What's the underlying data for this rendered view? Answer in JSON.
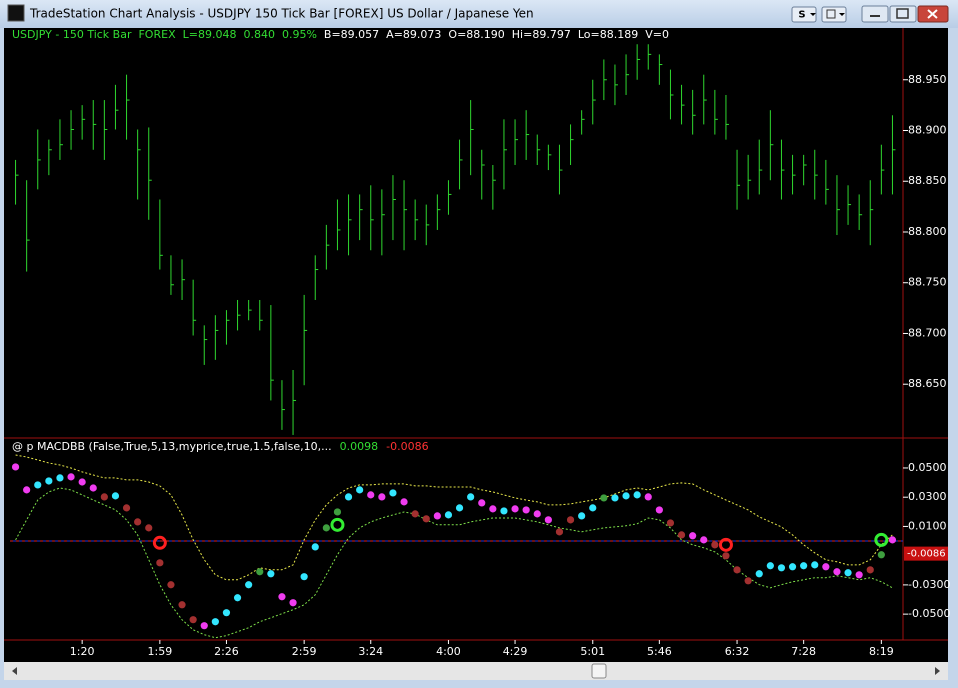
{
  "window": {
    "title": "TradeStation Chart Analysis - USDJPY 150 Tick Bar [FOREX] US Dollar / Japanese Yen",
    "style_button": "S"
  },
  "chart_data": [
    {
      "type": "hlc",
      "header": [
        "USDJPY - 150 Tick Bar",
        "FOREX",
        "L=89.048",
        "0.840",
        "0.95%"
      ],
      "header_color": "#33dd33",
      "quote": [
        "B=89.057",
        "A=89.073",
        "O=88.190",
        "Hi=89.797",
        "Lo=88.189",
        "V=0"
      ],
      "quote_color": "#ffffff",
      "color": "#2fd82f",
      "high": [
        88.871,
        88.851,
        88.901,
        88.891,
        88.911,
        88.92,
        88.925,
        88.93,
        88.93,
        88.945,
        88.955,
        88.901,
        88.903,
        88.832,
        88.777,
        88.773,
        88.753,
        88.708,
        88.718,
        88.723,
        88.733,
        88.733,
        88.733,
        88.728,
        88.654,
        88.664,
        88.738,
        88.777,
        88.807,
        88.832,
        88.837,
        88.837,
        88.846,
        88.842,
        88.856,
        88.851,
        88.832,
        88.827,
        88.837,
        88.851,
        88.891,
        88.93,
        88.881,
        88.866,
        88.911,
        88.911,
        88.92,
        88.896,
        88.886,
        88.886,
        88.906,
        88.92,
        88.95,
        88.97,
        88.965,
        88.975,
        88.985,
        88.985,
        88.975,
        88.96,
        88.945,
        88.94,
        88.955,
        88.94,
        88.935,
        88.881,
        88.876,
        88.891,
        88.92,
        88.891,
        88.876,
        88.876,
        88.881,
        88.871,
        88.856,
        88.846,
        88.837,
        88.851,
        88.886,
        88.915
      ],
      "low": [
        88.827,
        88.761,
        88.842,
        88.856,
        88.871,
        88.881,
        88.891,
        88.881,
        88.871,
        88.901,
        88.891,
        88.832,
        88.812,
        88.763,
        88.738,
        88.733,
        88.698,
        88.669,
        88.674,
        88.689,
        88.703,
        88.713,
        88.703,
        88.634,
        88.605,
        88.6,
        88.649,
        88.733,
        88.763,
        88.782,
        88.777,
        88.792,
        88.782,
        88.777,
        88.792,
        88.782,
        88.792,
        88.787,
        88.802,
        88.817,
        88.842,
        88.856,
        88.832,
        88.822,
        88.842,
        88.866,
        88.871,
        88.866,
        88.861,
        88.837,
        88.866,
        88.896,
        88.906,
        88.93,
        88.925,
        88.935,
        88.95,
        88.96,
        88.945,
        88.911,
        88.906,
        88.896,
        88.906,
        88.896,
        88.891,
        88.822,
        88.832,
        88.837,
        88.851,
        88.832,
        88.837,
        88.846,
        88.832,
        88.827,
        88.797,
        88.807,
        88.802,
        88.787,
        88.837,
        88.837
      ],
      "close": [
        88.856,
        88.792,
        88.871,
        88.881,
        88.886,
        88.901,
        88.911,
        88.906,
        88.901,
        88.92,
        88.93,
        88.881,
        88.851,
        88.777,
        88.748,
        88.753,
        88.713,
        88.694,
        88.703,
        88.713,
        88.718,
        88.723,
        88.713,
        88.654,
        88.625,
        88.634,
        88.703,
        88.763,
        88.787,
        88.802,
        88.812,
        88.822,
        88.812,
        88.817,
        88.832,
        88.822,
        88.812,
        88.807,
        88.822,
        88.837,
        88.871,
        88.901,
        88.866,
        88.851,
        88.881,
        88.891,
        88.896,
        88.881,
        88.876,
        88.861,
        88.891,
        88.911,
        88.93,
        88.95,
        88.945,
        88.955,
        88.97,
        88.975,
        88.965,
        88.935,
        88.925,
        88.915,
        88.93,
        88.911,
        88.906,
        88.846,
        88.851,
        88.861,
        88.886,
        88.861,
        88.856,
        88.866,
        88.856,
        88.842,
        88.822,
        88.827,
        88.817,
        88.822,
        88.861,
        88.881
      ],
      "ylim": [
        88.597,
        89.001
      ],
      "yticks": [
        {
          "value": 88.95,
          "label": "88.950"
        },
        {
          "value": 88.9,
          "label": "88.900"
        },
        {
          "value": 88.85,
          "label": "88.850"
        },
        {
          "value": 88.8,
          "label": "88.800"
        },
        {
          "value": 88.75,
          "label": "88.750"
        },
        {
          "value": 88.7,
          "label": "88.700"
        },
        {
          "value": 88.65,
          "label": "88.650"
        }
      ]
    },
    {
      "type": "dots",
      "title": "@ p MACDBB (False,True,5,13,myprice,true,1.5,false,10,...",
      "header_values": [
        0.0098,
        -0.0086
      ],
      "header_colors": [
        "#33dd33",
        "#ff3333"
      ],
      "categories": [
        null,
        null,
        null,
        null,
        null,
        null,
        "1:20",
        null,
        null,
        null,
        null,
        null,
        null,
        "1:59",
        null,
        null,
        null,
        null,
        null,
        "2:26",
        null,
        null,
        null,
        null,
        null,
        null,
        "2:59",
        null,
        null,
        null,
        null,
        null,
        "3:24",
        null,
        null,
        null,
        null,
        null,
        null,
        "4:00",
        null,
        null,
        null,
        null,
        null,
        "4:29",
        null,
        null,
        null,
        null,
        null,
        null,
        "5:01",
        null,
        null,
        null,
        null,
        null,
        "5:46",
        null,
        null,
        null,
        null,
        null,
        null,
        "6:32",
        null,
        null,
        null,
        null,
        null,
        "7:28",
        null,
        null,
        null,
        null,
        null,
        null,
        "8:19",
        null
      ],
      "values": [
        0.0507,
        0.035,
        0.0384,
        0.0411,
        0.0432,
        0.0439,
        0.0404,
        0.0363,
        0.0302,
        0.0309,
        0.0227,
        0.0131,
        0.009,
        -0.0149,
        -0.0299,
        -0.0436,
        -0.0538,
        -0.0579,
        -0.0552,
        -0.049,
        -0.0388,
        -0.0299,
        -0.021,
        -0.0224,
        -0.0381,
        -0.0422,
        -0.0244,
        -0.004,
        0.009,
        0.0199,
        0.0302,
        0.035,
        0.0316,
        0.0302,
        0.0329,
        0.0268,
        0.0186,
        0.0152,
        0.0172,
        0.0179,
        0.0227,
        0.0302,
        0.0261,
        0.022,
        0.0206,
        0.022,
        0.0213,
        0.0186,
        0.0145,
        0.0063,
        0.0145,
        0.0172,
        0.0227,
        0.0295,
        0.0295,
        0.0309,
        0.0316,
        0.0302,
        0.0213,
        0.0124,
        0.0042,
        0.0036,
        0.0008,
        -0.0026,
        -0.0101,
        -0.0197,
        -0.0272,
        -0.0224,
        -0.0169,
        -0.0183,
        -0.0176,
        -0.0169,
        -0.0163,
        -0.0176,
        -0.021,
        -0.0217,
        -0.0231,
        -0.0197,
        -0.0094,
        0.0008
      ],
      "colors": [
        "#f03cf0",
        "#f03cf0",
        "#33e6ff",
        "#33e6ff",
        "#33e6ff",
        "#f03cf0",
        "#f03cf0",
        "#f03cf0",
        "#a33030",
        "#33e6ff",
        "#a33030",
        "#a33030",
        "#a33030",
        "#a33030",
        "#a33030",
        "#a33030",
        "#a33030",
        "#f03cf0",
        "#33e6ff",
        "#33e6ff",
        "#33e6ff",
        "#33e6ff",
        "#3f9f3f",
        "#33e6ff",
        "#f03cf0",
        "#f03cf0",
        "#33e6ff",
        "#33e6ff",
        "#3f9f3f",
        "#3f9f3f",
        "#33e6ff",
        "#33e6ff",
        "#f03cf0",
        "#f03cf0",
        "#33e6ff",
        "#f03cf0",
        "#a33030",
        "#a33030",
        "#f03cf0",
        "#33e6ff",
        "#33e6ff",
        "#33e6ff",
        "#f03cf0",
        "#f03cf0",
        "#33e6ff",
        "#f03cf0",
        "#f03cf0",
        "#f03cf0",
        "#f03cf0",
        "#a33030",
        "#a33030",
        "#33e6ff",
        "#33e6ff",
        "#3f9f3f",
        "#33e6ff",
        "#33e6ff",
        "#33e6ff",
        "#f03cf0",
        "#f03cf0",
        "#a33030",
        "#a33030",
        "#f03cf0",
        "#f03cf0",
        "#a33030",
        "#a33030",
        "#a33030",
        "#a33030",
        "#33e6ff",
        "#33e6ff",
        "#33e6ff",
        "#33e6ff",
        "#33e6ff",
        "#33e6ff",
        "#f03cf0",
        "#f03cf0",
        "#33e6ff",
        "#f03cf0",
        "#a33030",
        "#3f9f3f",
        "#f03cf0"
      ],
      "series": [
        {
          "color": "#e8e84a",
          "values": [
            0.0589,
            0.0575,
            0.0555,
            0.0534,
            0.052,
            0.05,
            0.0473,
            0.0452,
            0.0432,
            0.0432,
            0.0418,
            0.0418,
            0.0404,
            0.0377,
            0.0316,
            0.0179,
            0.0008,
            -0.0128,
            -0.0231,
            -0.0265,
            -0.0265,
            -0.0231,
            -0.0183,
            -0.0197,
            -0.0197,
            -0.0163,
            0.0008,
            0.0145,
            0.0247,
            0.0316,
            0.0363,
            0.0384,
            0.0384,
            0.0391,
            0.0391,
            0.0391,
            0.0377,
            0.0377,
            0.037,
            0.037,
            0.037,
            0.037,
            0.035,
            0.0336,
            0.0316,
            0.0295,
            0.0281,
            0.0268,
            0.0247,
            0.0247,
            0.0254,
            0.0268,
            0.0281,
            0.0295,
            0.0322,
            0.035,
            0.0363,
            0.035,
            0.037,
            0.0391,
            0.0398,
            0.0391,
            0.035,
            0.0316,
            0.0281,
            0.0247,
            0.0213,
            0.0165,
            0.0131,
            0.0097,
            0.0042,
            -0.0026,
            -0.0081,
            -0.0128,
            -0.0142,
            -0.0163,
            -0.0163,
            -0.0128,
            -0.0026,
            0.0042
          ]
        },
        {
          "color": "#7ee04a",
          "values": [
            0.0008,
            0.0145,
            0.0281,
            0.0336,
            0.0363,
            0.035,
            0.0316,
            0.0281,
            0.0247,
            0.0213,
            0.0145,
            0.0042,
            -0.0128,
            -0.0299,
            -0.0436,
            -0.0538,
            -0.0607,
            -0.0641,
            -0.0661,
            -0.0647,
            -0.062,
            -0.0593,
            -0.0552,
            -0.0525,
            -0.0497,
            -0.047,
            -0.0436,
            -0.0367,
            -0.0231,
            -0.0094,
            0.0022,
            0.009,
            0.0131,
            0.0158,
            0.0179,
            0.0199,
            0.0186,
            0.0145,
            0.0111,
            0.0111,
            0.0111,
            0.0131,
            0.0145,
            0.0158,
            0.0158,
            0.0158,
            0.0145,
            0.0131,
            0.0111,
            0.009,
            0.0077,
            0.0063,
            0.0077,
            0.009,
            0.0097,
            0.0104,
            0.0118,
            0.0158,
            0.0145,
            0.009,
            0.0008,
            -0.0026,
            -0.0046,
            -0.0074,
            -0.0128,
            -0.0197,
            -0.0251,
            -0.0299,
            -0.032,
            -0.0299,
            -0.0279,
            -0.0265,
            -0.0251,
            -0.0251,
            -0.0238,
            -0.0251,
            -0.0265,
            -0.0251,
            -0.0279,
            -0.032
          ]
        }
      ],
      "signal_values": [
        null,
        null,
        null,
        null,
        null,
        null,
        null,
        null,
        null,
        null,
        null,
        null,
        null,
        -0.0012,
        null,
        null,
        null,
        null,
        null,
        null,
        null,
        null,
        null,
        null,
        null,
        null,
        null,
        null,
        null,
        0.0111,
        null,
        null,
        null,
        null,
        null,
        null,
        null,
        null,
        null,
        null,
        null,
        null,
        null,
        null,
        null,
        null,
        null,
        null,
        null,
        null,
        null,
        null,
        null,
        null,
        null,
        null,
        null,
        null,
        null,
        null,
        null,
        null,
        null,
        null,
        -0.0026,
        null,
        null,
        null,
        null,
        null,
        null,
        null,
        null,
        null,
        null,
        null,
        null,
        null,
        0.0008,
        null
      ],
      "signal_colors": [
        null,
        null,
        null,
        null,
        null,
        null,
        null,
        null,
        null,
        null,
        null,
        null,
        null,
        "#ff2020",
        null,
        null,
        null,
        null,
        null,
        null,
        null,
        null,
        null,
        null,
        null,
        null,
        null,
        null,
        null,
        "#33ee33",
        null,
        null,
        null,
        null,
        null,
        null,
        null,
        null,
        null,
        null,
        null,
        null,
        null,
        null,
        null,
        null,
        null,
        null,
        null,
        null,
        null,
        null,
        null,
        null,
        null,
        null,
        null,
        null,
        null,
        null,
        null,
        null,
        null,
        null,
        "#ff2020",
        null,
        null,
        null,
        null,
        null,
        null,
        null,
        null,
        null,
        null,
        null,
        null,
        null,
        "#33ee33",
        null
      ],
      "ylim": [
        -0.0677,
        0.0705
      ],
      "yticks": [
        {
          "value": 0.05,
          "label": "0.0500"
        },
        {
          "value": 0.03,
          "label": "0.0300"
        },
        {
          "value": 0.01,
          "label": "0.0100"
        },
        {
          "value": -0.03,
          "label": "-0.0300"
        },
        {
          "value": -0.05,
          "label": "-0.0500"
        }
      ]
    }
  ]
}
